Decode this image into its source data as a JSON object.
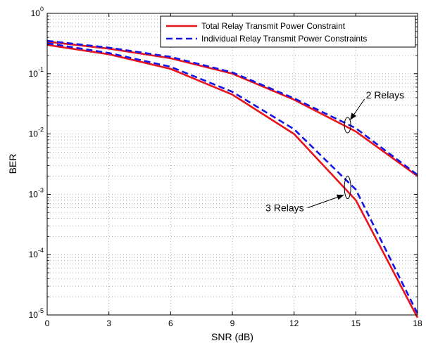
{
  "chart_data": {
    "type": "line",
    "xlabel": "SNR (dB)",
    "ylabel": "BER",
    "x_ticks": [
      "0",
      "3",
      "6",
      "9",
      "12",
      "15",
      "18"
    ],
    "y_ticks": [
      {
        "base": "10",
        "exp": "0"
      },
      {
        "base": "10",
        "exp": "-1"
      },
      {
        "base": "10",
        "exp": "-2"
      },
      {
        "base": "10",
        "exp": "-3"
      },
      {
        "base": "10",
        "exp": "-4"
      },
      {
        "base": "10",
        "exp": "-5"
      }
    ],
    "xlim": [
      0,
      18
    ],
    "ylim": [
      1e-05,
      1
    ],
    "yscale": "log",
    "grid": true,
    "legend_position": "top-right",
    "colors": {
      "total": "#e8141c",
      "individual": "#1414e6"
    },
    "series": [
      {
        "name": "Total Relay Transmit Power Constraint",
        "group": "2 Relays",
        "style": "solid",
        "x": [
          0,
          3,
          6,
          9,
          12,
          15,
          18
        ],
        "y": [
          0.34,
          0.26,
          0.18,
          0.1,
          0.037,
          0.011,
          0.002
        ]
      },
      {
        "name": "Individual Relay Transmit Power Constraints",
        "group": "2 Relays",
        "style": "dashed",
        "x": [
          0,
          3,
          6,
          9,
          12,
          15,
          18
        ],
        "y": [
          0.35,
          0.27,
          0.19,
          0.105,
          0.039,
          0.0125,
          0.0021
        ]
      },
      {
        "name": "Total Relay Transmit Power Constraint",
        "group": "3 Relays",
        "style": "solid",
        "x": [
          0,
          3,
          6,
          9,
          12,
          15,
          18
        ],
        "y": [
          0.3,
          0.21,
          0.12,
          0.045,
          0.01,
          0.0008,
          9e-06
        ]
      },
      {
        "name": "Individual Relay Transmit Power Constraints",
        "group": "3 Relays",
        "style": "dashed",
        "x": [
          0,
          3,
          6,
          9,
          12,
          15,
          18
        ],
        "y": [
          0.32,
          0.22,
          0.13,
          0.05,
          0.012,
          0.0012,
          1.05e-05
        ]
      }
    ],
    "legend": [
      {
        "label": "Total Relay Transmit Power Constraint",
        "style": "solid"
      },
      {
        "label": "Individual Relay Transmit Power Constraints",
        "style": "dashed"
      }
    ],
    "annotations": [
      {
        "text": "2 Relays",
        "points_to": {
          "x": 14.6,
          "y": 0.014
        }
      },
      {
        "text": "3 Relays",
        "points_to": {
          "x": 14.6,
          "y": 0.0013
        }
      }
    ]
  }
}
